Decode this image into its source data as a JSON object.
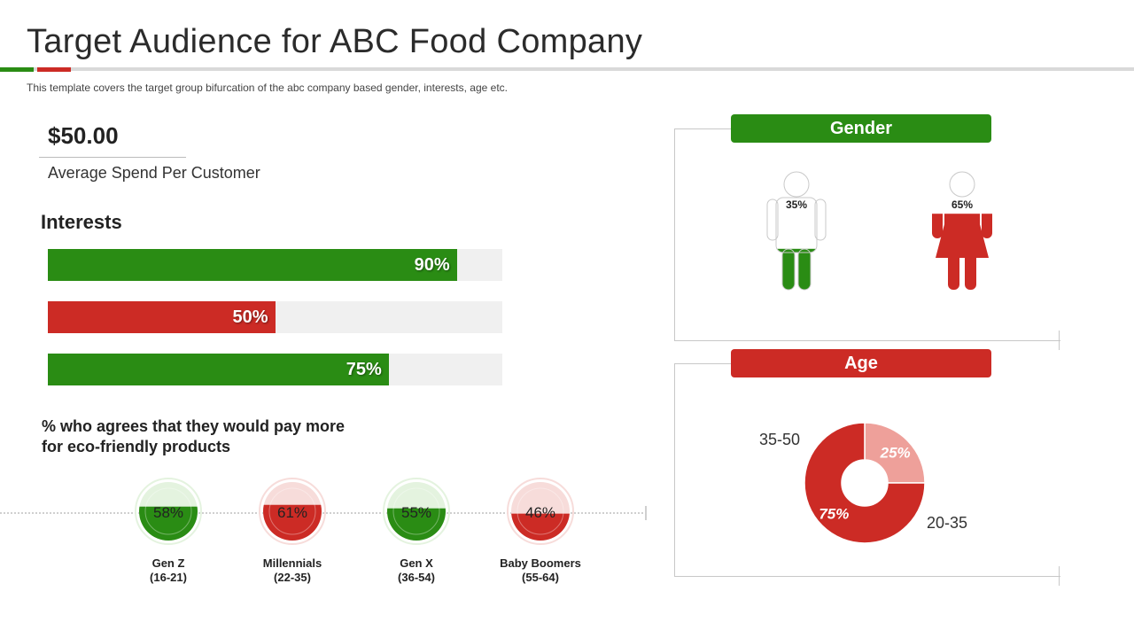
{
  "header": {
    "title": "Target Audience for ABC Food Company",
    "subtitle": "This template covers the target group bifurcation of the abc company based gender, interests, age etc."
  },
  "colors": {
    "green": "#2a8c14",
    "red": "#cc2b25",
    "pink": "#eea09a",
    "track": "#f0f0f0"
  },
  "spend": {
    "value": "$50.00",
    "label": "Average Spend Per Customer"
  },
  "interests": {
    "title": "Interests",
    "bars": [
      {
        "label": "90%",
        "value": 90,
        "color": "green"
      },
      {
        "label": "50%",
        "value": 50,
        "color": "red"
      },
      {
        "label": "75%",
        "value": 75,
        "color": "green"
      }
    ]
  },
  "eco": {
    "title_line1": "% who agrees that they would pay more",
    "title_line2": "for eco-friendly products",
    "groups": [
      {
        "label": "58%",
        "value": 58,
        "name": "Gen Z",
        "range": "(16-21)",
        "color": "green"
      },
      {
        "label": "61%",
        "value": 61,
        "name": "Millennials",
        "range": "(22-35)",
        "color": "red"
      },
      {
        "label": "55%",
        "value": 55,
        "name": "Gen X",
        "range": "(36-54)",
        "color": "green"
      },
      {
        "label": "46%",
        "value": 46,
        "name": "Baby Boomers",
        "range": "(55-64)",
        "color": "red"
      }
    ]
  },
  "gender": {
    "title": "Gender",
    "male": {
      "label": "35%",
      "value": 35
    },
    "female": {
      "label": "65%",
      "value": 65
    }
  },
  "age": {
    "title": "Age",
    "label_small": "35-50",
    "label_large": "20-35"
  },
  "chart_data": [
    {
      "type": "bar",
      "title": "Interests",
      "orientation": "horizontal",
      "categories": [
        "",
        "",
        ""
      ],
      "values": [
        90,
        50,
        75
      ],
      "ylim": [
        0,
        100
      ]
    },
    {
      "type": "pie",
      "title": "% who agrees that they would pay more for eco-friendly products",
      "categories": [
        "Gen Z (16-21)",
        "Millennials (22-35)",
        "Gen X (36-54)",
        "Baby Boomers (55-64)"
      ],
      "values": [
        58,
        61,
        55,
        46
      ]
    },
    {
      "type": "bar",
      "title": "Gender",
      "categories": [
        "Male",
        "Female"
      ],
      "values": [
        35,
        65
      ]
    },
    {
      "type": "pie",
      "title": "Age",
      "donut": true,
      "categories": [
        "35-50",
        "20-35"
      ],
      "values": [
        25,
        75
      ],
      "labels": [
        "25%",
        "75%"
      ]
    }
  ]
}
